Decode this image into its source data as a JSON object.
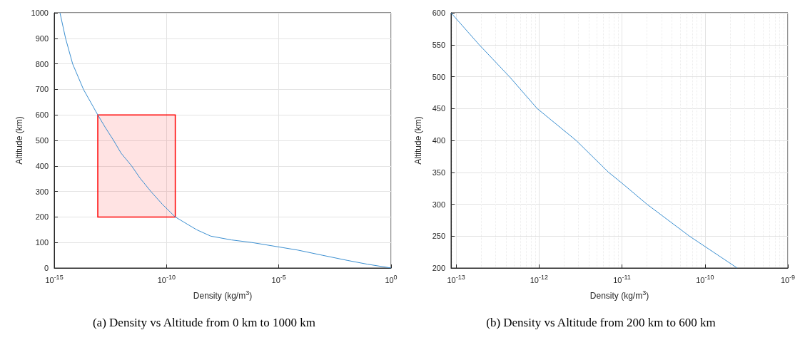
{
  "chart_data": [
    {
      "type": "line",
      "title": "(a) Density vs Altitude from 0 km to 1000 km",
      "xlabel": "Density (kg/m$^{3}$)",
      "ylabel": "Altitude (km)",
      "log": "x",
      "grid": true,
      "xlim": [
        1e-15,
        1
      ],
      "xticks": [
        {
          "value": 1e-15,
          "label": "10$^{-15}$"
        },
        {
          "value": 1e-10,
          "label": "10$^{-10}$"
        },
        {
          "value": 1e-05,
          "label": "10$^{-5}$"
        },
        {
          "value": 1,
          "label": "10$^{0}$"
        }
      ],
      "ylim": [
        0,
        1000
      ],
      "yticks": [
        0,
        100,
        200,
        300,
        400,
        500,
        600,
        700,
        800,
        900,
        1000
      ],
      "series": [
        {
          "type": "area",
          "color": "#ff0000",
          "x": [
            8.7e-14,
            8.7e-14,
            2.45e-10,
            2.45e-10,
            8.7e-14
          ],
          "values": [
            200,
            600,
            600,
            200,
            200
          ]
        },
        {
          "color": "#3a8ed0",
          "x": [
            1.8e-15,
            3.2e-15,
            6.6e-15,
            2e-14,
            8.7e-14,
            1.9e-13,
            4.4e-13,
            9.5e-13,
            2.8e-12,
            6.9e-12,
            1e-11,
            2e-11,
            6.5e-11,
            2.45e-10,
            2.2e-09,
            9.3e-09,
            7.8e-08,
            6.3e-07,
            1.5e-05,
            7.2e-05,
            0.00087,
            0.011,
            0.087,
            1.0
          ],
          "values": [
            1000,
            900,
            800,
            700,
            600,
            550,
            500,
            450,
            400,
            350,
            333,
            300,
            250,
            200,
            150,
            125,
            110,
            100,
            80,
            70,
            50,
            30,
            15,
            0
          ]
        }
      ]
    },
    {
      "type": "line",
      "title": "(b) Density vs Altitude from 200 km to 600 km",
      "xlabel": "Density (kg/m$^{3}$)",
      "ylabel": "Altitude (km)",
      "log": "x",
      "grid": true,
      "xlim": [
        8.7e-14,
        1e-09
      ],
      "xticks": [
        {
          "value": 1e-13,
          "label": "10$^{-13}$"
        },
        {
          "value": 1e-12,
          "label": "10$^{-12}$"
        },
        {
          "value": 1e-11,
          "label": "10$^{-11}$"
        },
        {
          "value": 1e-10,
          "label": "10$^{-10}$"
        },
        {
          "value": 1e-09,
          "label": "10$^{-9}$"
        }
      ],
      "ylim": [
        200,
        600
      ],
      "yticks": [
        200,
        250,
        300,
        350,
        400,
        450,
        500,
        550,
        600
      ],
      "series": [
        {
          "color": "#3a8ed0",
          "x": [
            8.7e-14,
            1.9e-13,
            4.4e-13,
            9.5e-13,
            2.8e-12,
            6.9e-12,
            1e-11,
            2e-11,
            6.5e-11,
            2.45e-10
          ],
          "values": [
            600,
            550,
            500,
            450,
            400,
            350,
            333,
            300,
            250,
            200
          ]
        }
      ]
    }
  ]
}
